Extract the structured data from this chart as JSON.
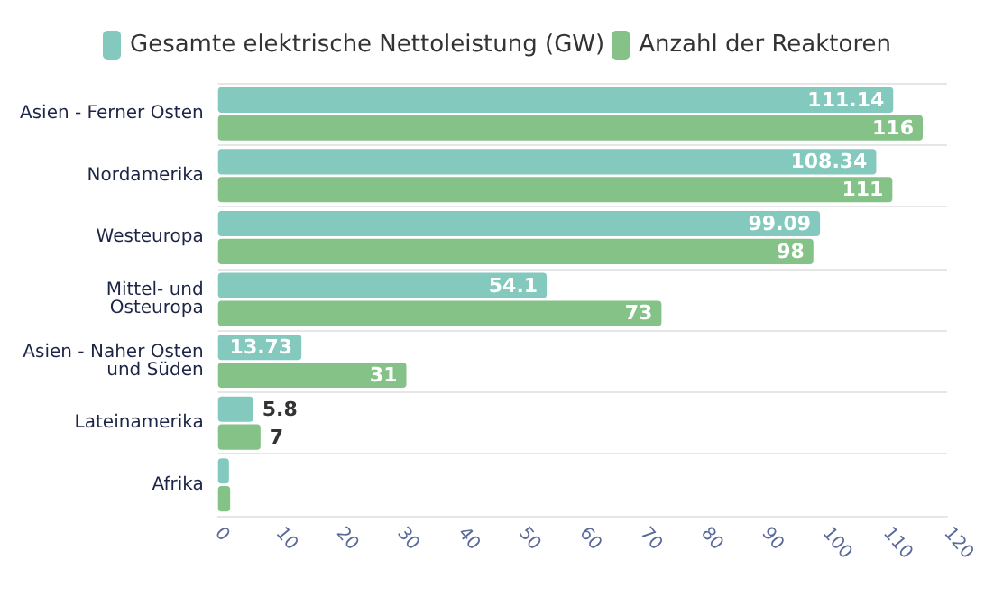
{
  "chart_data": {
    "type": "bar",
    "orientation": "horizontal",
    "categories": [
      "Asien - Ferner Osten",
      "Nordamerika",
      "Westeuropa",
      "Mittel- und Osteuropa",
      "Asien - Naher Osten und Süden",
      "Lateinamerika",
      "Afrika"
    ],
    "series": [
      {
        "name": "Gesamte elektrische Nettoleistung (GW)",
        "color": "#83c9bd",
        "values": [
          111.14,
          108.34,
          99.09,
          54.1,
          13.73,
          5.8,
          1.8
        ],
        "value_labels": [
          "111.14",
          "108.34",
          "99.09",
          "54.1",
          "13.73",
          "5.8",
          null
        ]
      },
      {
        "name": "Anzahl der Reaktoren",
        "color": "#85c288",
        "values": [
          116,
          111,
          98,
          73,
          31,
          7,
          2
        ],
        "value_labels": [
          "116",
          "111",
          "98",
          "73",
          "31",
          "7",
          null
        ]
      }
    ],
    "xlim": [
      0,
      120
    ],
    "xticks": [
      0,
      10,
      20,
      30,
      40,
      50,
      60,
      70,
      80,
      90,
      100,
      110,
      120
    ],
    "grid": "y",
    "legend": "top"
  }
}
